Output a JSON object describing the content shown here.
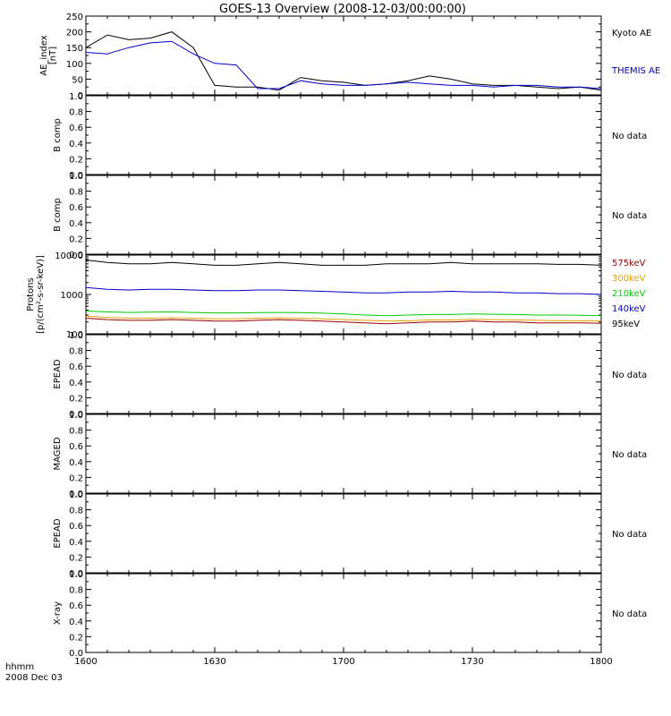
{
  "title": "GOES-13 Overview (2008-12-03/00:00:00)",
  "x_axis": {
    "corner_label_line1": "hhmm",
    "corner_label_line2": "2008 Dec 03",
    "ticks": [
      "1600",
      "1630",
      "1700",
      "1730",
      "1800"
    ]
  },
  "no_data_text": "No data",
  "colors": {
    "kyoto": "#000000",
    "themis": "#0000cc",
    "p575": "#990000",
    "p300": "#e6a000",
    "p210": "#00cc00",
    "p140": "#0000cc",
    "p95": "#000000"
  },
  "chart_data": [
    {
      "type": "line",
      "panel": "AE",
      "ylabel_line1": "AE_index",
      "ylabel_line2": "[nT]",
      "ylim": [
        0,
        250
      ],
      "yticks": [
        "0",
        "50",
        "100",
        "150",
        "200",
        "250"
      ],
      "x": [
        "1600",
        "1605",
        "1610",
        "1615",
        "1620",
        "1625",
        "1630",
        "1635",
        "1640",
        "1645",
        "1650",
        "1655",
        "1700",
        "1705",
        "1710",
        "1715",
        "1720",
        "1725",
        "1730",
        "1735",
        "1740",
        "1745",
        "1750",
        "1755",
        "1800"
      ],
      "series": [
        {
          "name": "Kyoto AE",
          "color": "#000000",
          "values": [
            150,
            190,
            175,
            180,
            200,
            150,
            30,
            25,
            25,
            15,
            55,
            45,
            40,
            30,
            35,
            45,
            60,
            50,
            35,
            30,
            30,
            25,
            20,
            25,
            15
          ]
        },
        {
          "name": "THEMIS AE",
          "color": "#0000cc",
          "values": [
            135,
            130,
            150,
            165,
            170,
            130,
            100,
            95,
            20,
            20,
            45,
            35,
            30,
            30,
            35,
            40,
            35,
            30,
            30,
            25,
            30,
            30,
            25,
            25,
            20
          ]
        }
      ],
      "legend": [
        "Kyoto AE",
        "THEMIS AE"
      ]
    },
    {
      "type": "line",
      "panel": "empty",
      "ylabel": "B comp",
      "ylim": [
        0,
        1
      ],
      "yticks": [
        "0.0",
        "0.2",
        "0.4",
        "0.6",
        "0.8",
        "1.0"
      ],
      "status": "No data"
    },
    {
      "type": "line",
      "panel": "empty",
      "ylabel": "B comp",
      "ylim": [
        0,
        1
      ],
      "yticks": [
        "0.0",
        "0.2",
        "0.4",
        "0.6",
        "0.8",
        "1.0"
      ],
      "status": "No data"
    },
    {
      "type": "line",
      "panel": "Protons",
      "scale": "log",
      "ylabel_line1": "Protons",
      "ylabel_line2": "[p/(cm²-s-sr-keV)]",
      "ylim": [
        100,
        10000
      ],
      "yticks": [
        "100",
        "1000",
        "10000"
      ],
      "x": [
        "1600",
        "1605",
        "1610",
        "1615",
        "1620",
        "1625",
        "1630",
        "1635",
        "1640",
        "1645",
        "1650",
        "1655",
        "1700",
        "1705",
        "1710",
        "1715",
        "1720",
        "1725",
        "1730",
        "1735",
        "1740",
        "1745",
        "1750",
        "1755",
        "1800"
      ],
      "series": [
        {
          "name": "575keV",
          "color": "#990000",
          "values": [
            250,
            230,
            220,
            220,
            230,
            220,
            210,
            210,
            220,
            230,
            220,
            210,
            200,
            190,
            180,
            190,
            200,
            200,
            210,
            200,
            200,
            190,
            190,
            190,
            185
          ]
        },
        {
          "name": "300keV",
          "color": "#e6a000",
          "values": [
            280,
            260,
            250,
            250,
            255,
            250,
            240,
            240,
            250,
            255,
            250,
            240,
            230,
            220,
            210,
            215,
            225,
            225,
            235,
            230,
            225,
            220,
            215,
            215,
            210
          ]
        },
        {
          "name": "210keV",
          "color": "#00cc00",
          "values": [
            380,
            360,
            350,
            355,
            360,
            350,
            340,
            340,
            345,
            350,
            345,
            335,
            320,
            300,
            290,
            300,
            310,
            310,
            320,
            315,
            310,
            300,
            300,
            295,
            290
          ]
        },
        {
          "name": "140keV",
          "color": "#0000cc",
          "values": [
            1500,
            1350,
            1300,
            1350,
            1350,
            1300,
            1250,
            1250,
            1300,
            1300,
            1250,
            1200,
            1150,
            1100,
            1100,
            1150,
            1150,
            1200,
            1150,
            1150,
            1100,
            1100,
            1050,
            1050,
            1000
          ]
        },
        {
          "name": "95keV",
          "color": "#000000",
          "values": [
            7500,
            6500,
            6000,
            6000,
            6500,
            6000,
            5500,
            5500,
            6000,
            6500,
            6000,
            5500,
            5500,
            5500,
            6000,
            6000,
            6000,
            6500,
            6000,
            6000,
            6000,
            6000,
            5800,
            5800,
            5500
          ]
        }
      ],
      "legend": [
        "575keV",
        "300keV",
        "210keV",
        "140keV",
        "95keV"
      ]
    },
    {
      "type": "line",
      "panel": "empty",
      "ylabel": "EPEAD",
      "ylim": [
        0,
        1
      ],
      "yticks": [
        "0.0",
        "0.2",
        "0.4",
        "0.6",
        "0.8",
        "1.0"
      ],
      "status": "No data"
    },
    {
      "type": "line",
      "panel": "empty",
      "ylabel": "MAGED",
      "ylim": [
        0,
        1
      ],
      "yticks": [
        "0.0",
        "0.2",
        "0.4",
        "0.6",
        "0.8",
        "1.0"
      ],
      "status": "No data"
    },
    {
      "type": "line",
      "panel": "empty",
      "ylabel": "EPEAD",
      "ylim": [
        0,
        1
      ],
      "yticks": [
        "0.0",
        "0.2",
        "0.4",
        "0.6",
        "0.8",
        "1.0"
      ],
      "status": "No data"
    },
    {
      "type": "line",
      "panel": "empty",
      "ylabel": "X-ray",
      "ylim": [
        0,
        1
      ],
      "yticks": [
        "0.0",
        "0.2",
        "0.4",
        "0.6",
        "0.8",
        "1.0"
      ],
      "status": "No data"
    }
  ]
}
